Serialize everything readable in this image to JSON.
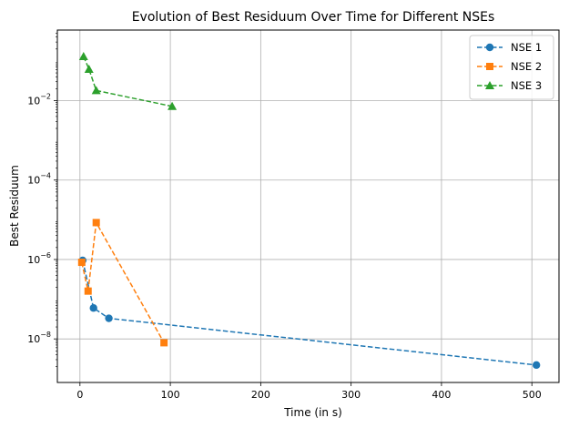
{
  "chart_data": {
    "type": "line",
    "title": "Evolution of Best Residuum Over Time for Different NSEs",
    "xlabel": "Time (in s)",
    "ylabel": "Best Residuum",
    "x_ticks": [
      0,
      100,
      200,
      300,
      400,
      500
    ],
    "x_tick_labels": [
      "0",
      "100",
      "200",
      "300",
      "400",
      "500"
    ],
    "y_ticks": [
      1e-08,
      1e-06,
      0.0001,
      0.01
    ],
    "y_tick_labels": [
      {
        "base": "10",
        "exp": "−8"
      },
      {
        "base": "10",
        "exp": "−6"
      },
      {
        "base": "10",
        "exp": "−4"
      },
      {
        "base": "10",
        "exp": "−2"
      }
    ],
    "xlim": [
      -25,
      530
    ],
    "ylim": [
      8e-10,
      0.6
    ],
    "yscale": "log",
    "grid": true,
    "legend_position": "top-right",
    "series": [
      {
        "name": "NSE 1",
        "color": "#1f77b4",
        "marker": "circle",
        "x": [
          3,
          15,
          32,
          505
        ],
        "y": [
          9.5e-07,
          6e-08,
          3.3e-08,
          2.2e-09
        ]
      },
      {
        "name": "NSE 2",
        "color": "#ff7f0e",
        "marker": "square",
        "x": [
          2,
          9,
          18,
          93
        ],
        "y": [
          8.5e-07,
          1.6e-07,
          8.5e-06,
          8e-09
        ]
      },
      {
        "name": "NSE 3",
        "color": "#2ca02c",
        "marker": "triangle",
        "x": [
          4,
          10,
          18,
          102
        ],
        "y": [
          0.13,
          0.062,
          0.018,
          0.0072
        ]
      }
    ]
  }
}
